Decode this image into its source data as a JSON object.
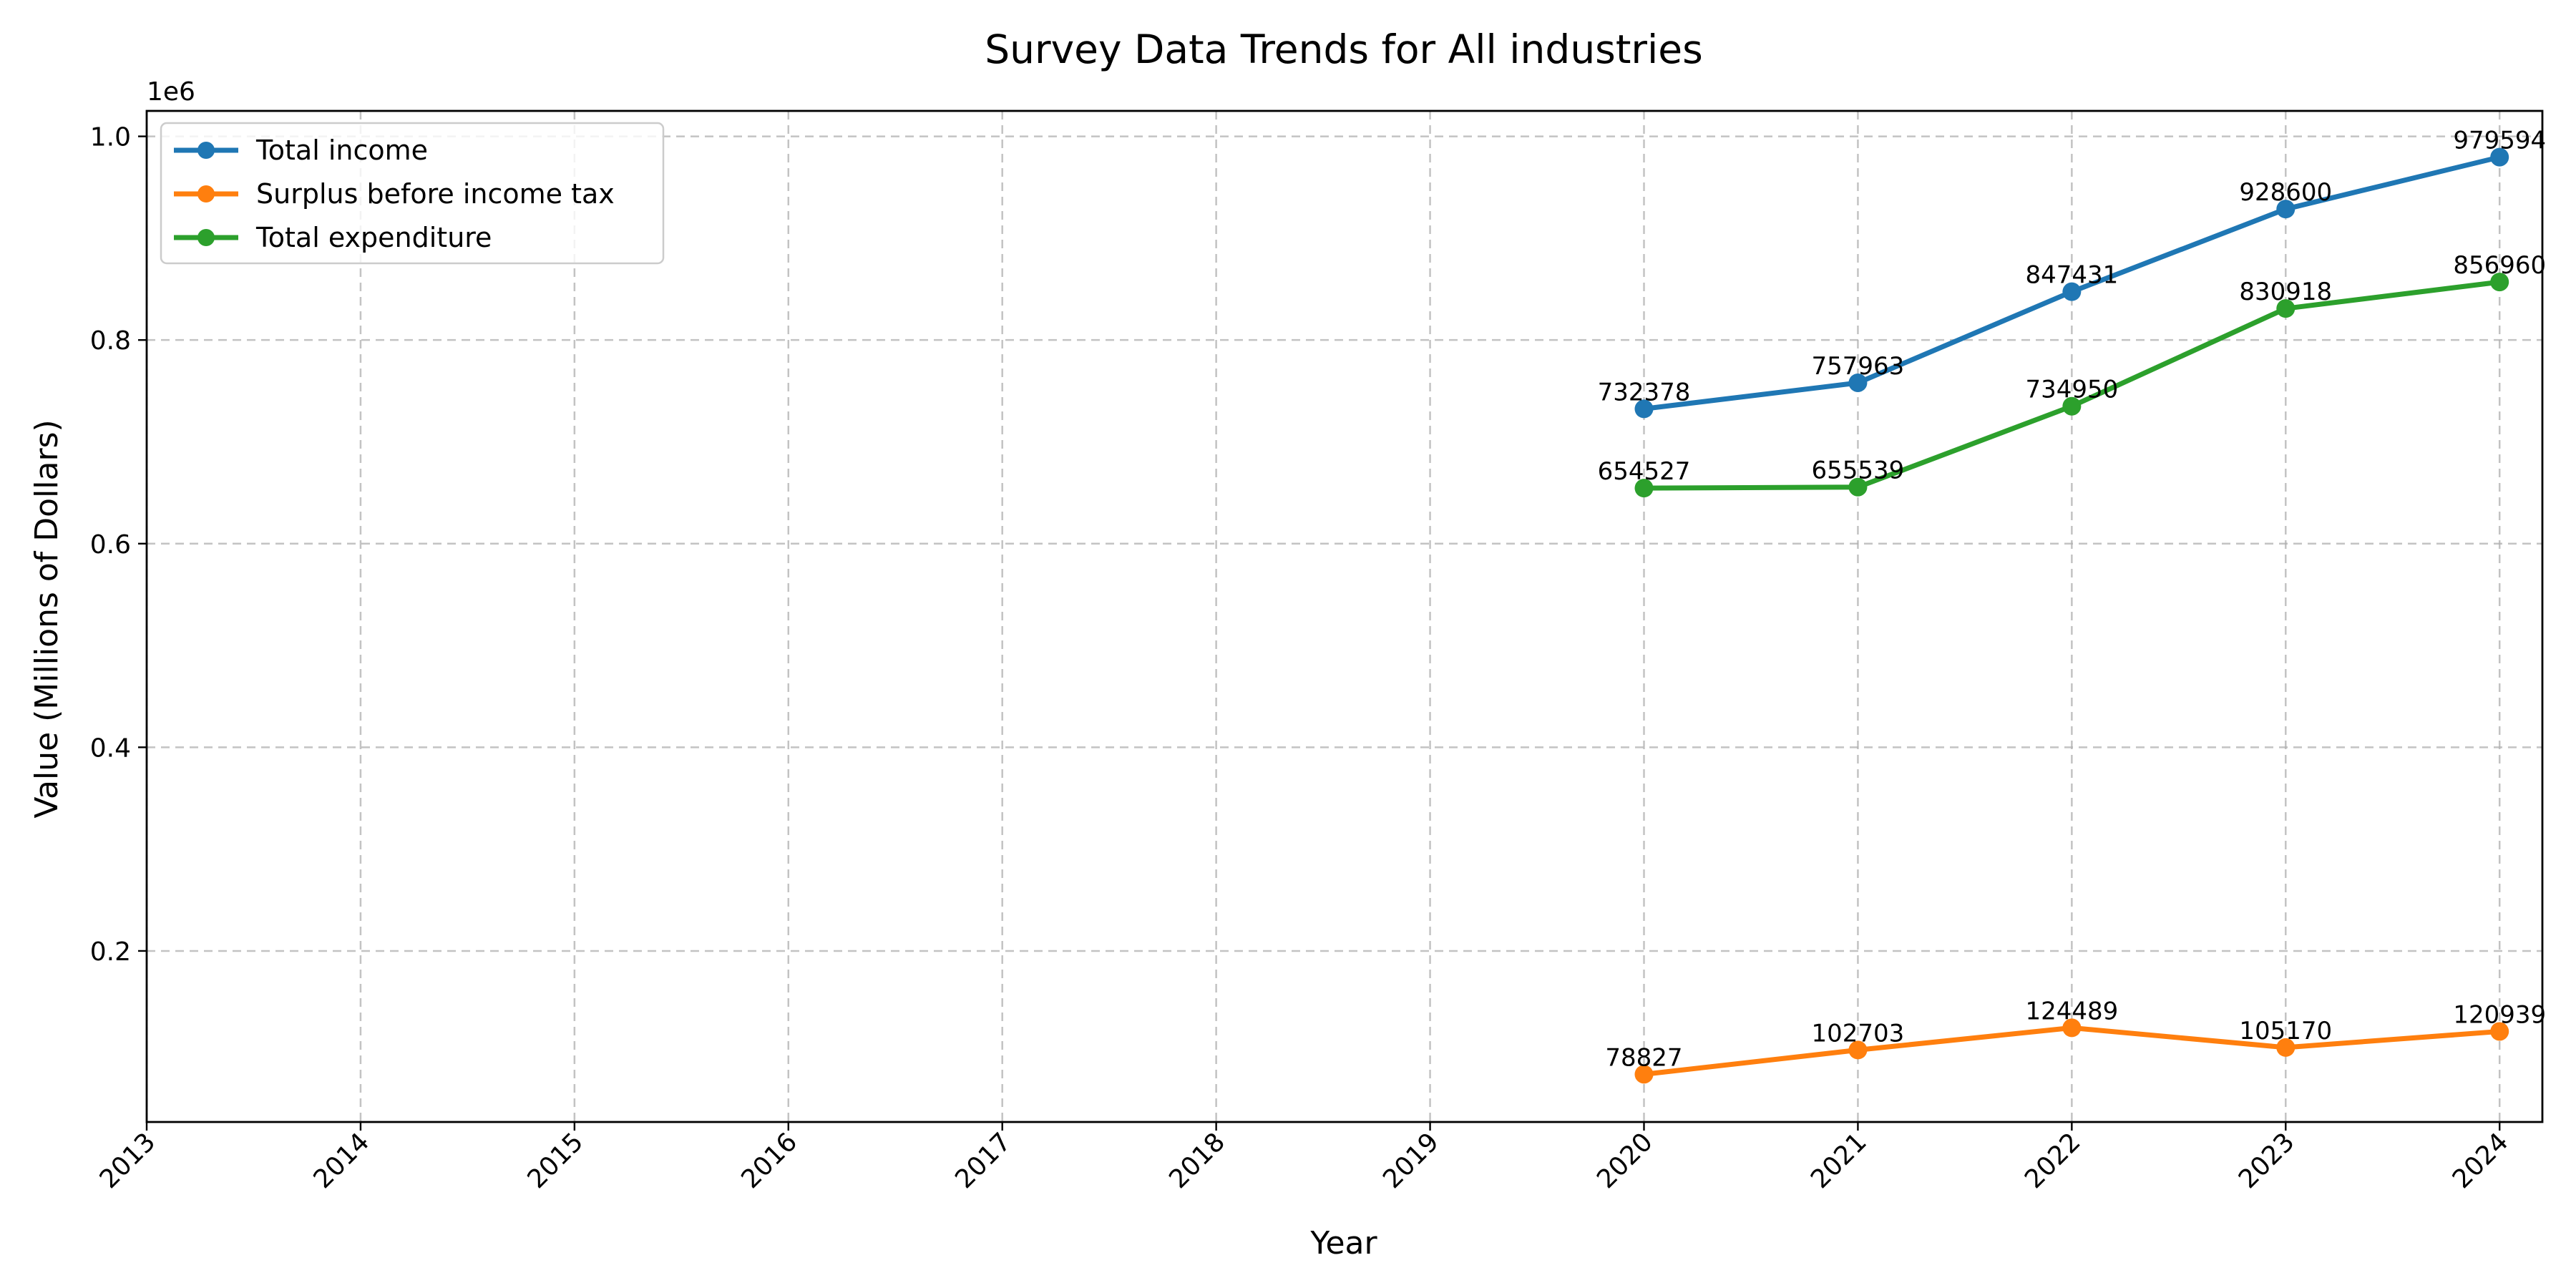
{
  "chart_data": {
    "type": "line",
    "title": "Survey Data Trends for All industries",
    "xlabel": "Year",
    "ylabel": "Value (Millions of Dollars)",
    "y_offset_label": "1e6",
    "x_ticks": [
      "2013",
      "2014",
      "2015",
      "2016",
      "2017",
      "2018",
      "2019",
      "2020",
      "2021",
      "2022",
      "2023",
      "2024"
    ],
    "y_ticks": [
      "0.2",
      "0.4",
      "0.6",
      "0.8",
      "1.0"
    ],
    "xlim": [
      2013,
      2024.2
    ],
    "ylim": [
      32000,
      1025000
    ],
    "grid": true,
    "legend_position": "top-left",
    "series": [
      {
        "name": "Total income",
        "color": "#1f77b4",
        "x": [
          2020,
          2021,
          2022,
          2023,
          2024
        ],
        "values": [
          732378,
          757963,
          847431,
          928600,
          979594
        ],
        "labels": [
          "732378",
          "757963",
          "847431",
          "928600",
          "979594"
        ]
      },
      {
        "name": "Surplus before income tax",
        "color": "#ff7f0e",
        "x": [
          2020,
          2021,
          2022,
          2023,
          2024
        ],
        "values": [
          78827,
          102703,
          124489,
          105170,
          120939
        ],
        "labels": [
          "78827",
          "102703",
          "124489",
          "105170",
          "120939"
        ]
      },
      {
        "name": "Total expenditure",
        "color": "#2ca02c",
        "x": [
          2020,
          2021,
          2022,
          2023,
          2024
        ],
        "values": [
          654527,
          655539,
          734950,
          830918,
          856960
        ],
        "labels": [
          "654527",
          "655539",
          "734950",
          "830918",
          "856960"
        ]
      }
    ]
  }
}
